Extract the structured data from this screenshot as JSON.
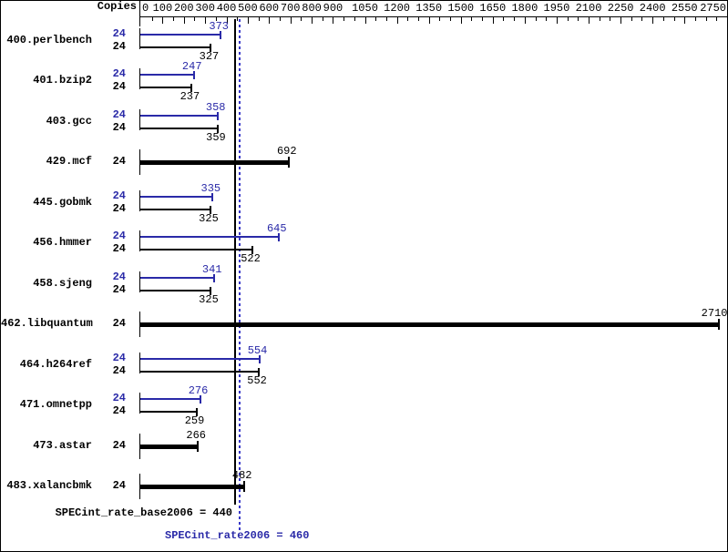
{
  "chart_data": {
    "type": "bar",
    "orientation": "horizontal",
    "copies_header": "Copies",
    "x_axis": {
      "major_tick_labels": [
        0,
        100,
        200,
        300,
        400,
        500,
        600,
        700,
        800,
        900,
        1050,
        1200,
        1350,
        1500,
        1650,
        1800,
        1950,
        2100,
        2250,
        2400,
        2550,
        2750
      ],
      "minor_tick_step": 50,
      "min": 0,
      "max": 2750
    },
    "benchmarks": [
      {
        "name": "400.perlbench",
        "copies": 24,
        "peak": 373,
        "base": 327,
        "single_bar": false
      },
      {
        "name": "401.bzip2",
        "copies": 24,
        "peak": 247,
        "base": 237,
        "single_bar": false
      },
      {
        "name": "403.gcc",
        "copies": 24,
        "peak": 358,
        "base": 359,
        "single_bar": false
      },
      {
        "name": "429.mcf",
        "copies": 24,
        "peak": 692,
        "base": 692,
        "single_bar": true
      },
      {
        "name": "445.gobmk",
        "copies": 24,
        "peak": 335,
        "base": 325,
        "single_bar": false
      },
      {
        "name": "456.hmmer",
        "copies": 24,
        "peak": 645,
        "base": 522,
        "single_bar": false
      },
      {
        "name": "458.sjeng",
        "copies": 24,
        "peak": 341,
        "base": 325,
        "single_bar": false
      },
      {
        "name": "462.libquantum",
        "copies": 24,
        "peak": 2710,
        "base": 2710,
        "single_bar": true
      },
      {
        "name": "464.h264ref",
        "copies": 24,
        "peak": 554,
        "base": 552,
        "single_bar": false
      },
      {
        "name": "471.omnetpp",
        "copies": 24,
        "peak": 276,
        "base": 259,
        "single_bar": false
      },
      {
        "name": "473.astar",
        "copies": 24,
        "peak": 266,
        "base": 266,
        "single_bar": true
      },
      {
        "name": "483.xalancbmk",
        "copies": 24,
        "peak": 482,
        "base": 482,
        "single_bar": true
      }
    ],
    "reference_lines": [
      {
        "label": "SPECint_rate_base2006 = 440",
        "value": 440,
        "style": "solid",
        "color": "#000000"
      },
      {
        "label": "SPECint_rate2006 = 460",
        "value": 460,
        "style": "dotted",
        "color": "#3838c8"
      }
    ],
    "colors": {
      "peak_blue": "#2a2aa8",
      "base_black": "#000000",
      "background": "#ffffff",
      "border": "#000000"
    }
  }
}
